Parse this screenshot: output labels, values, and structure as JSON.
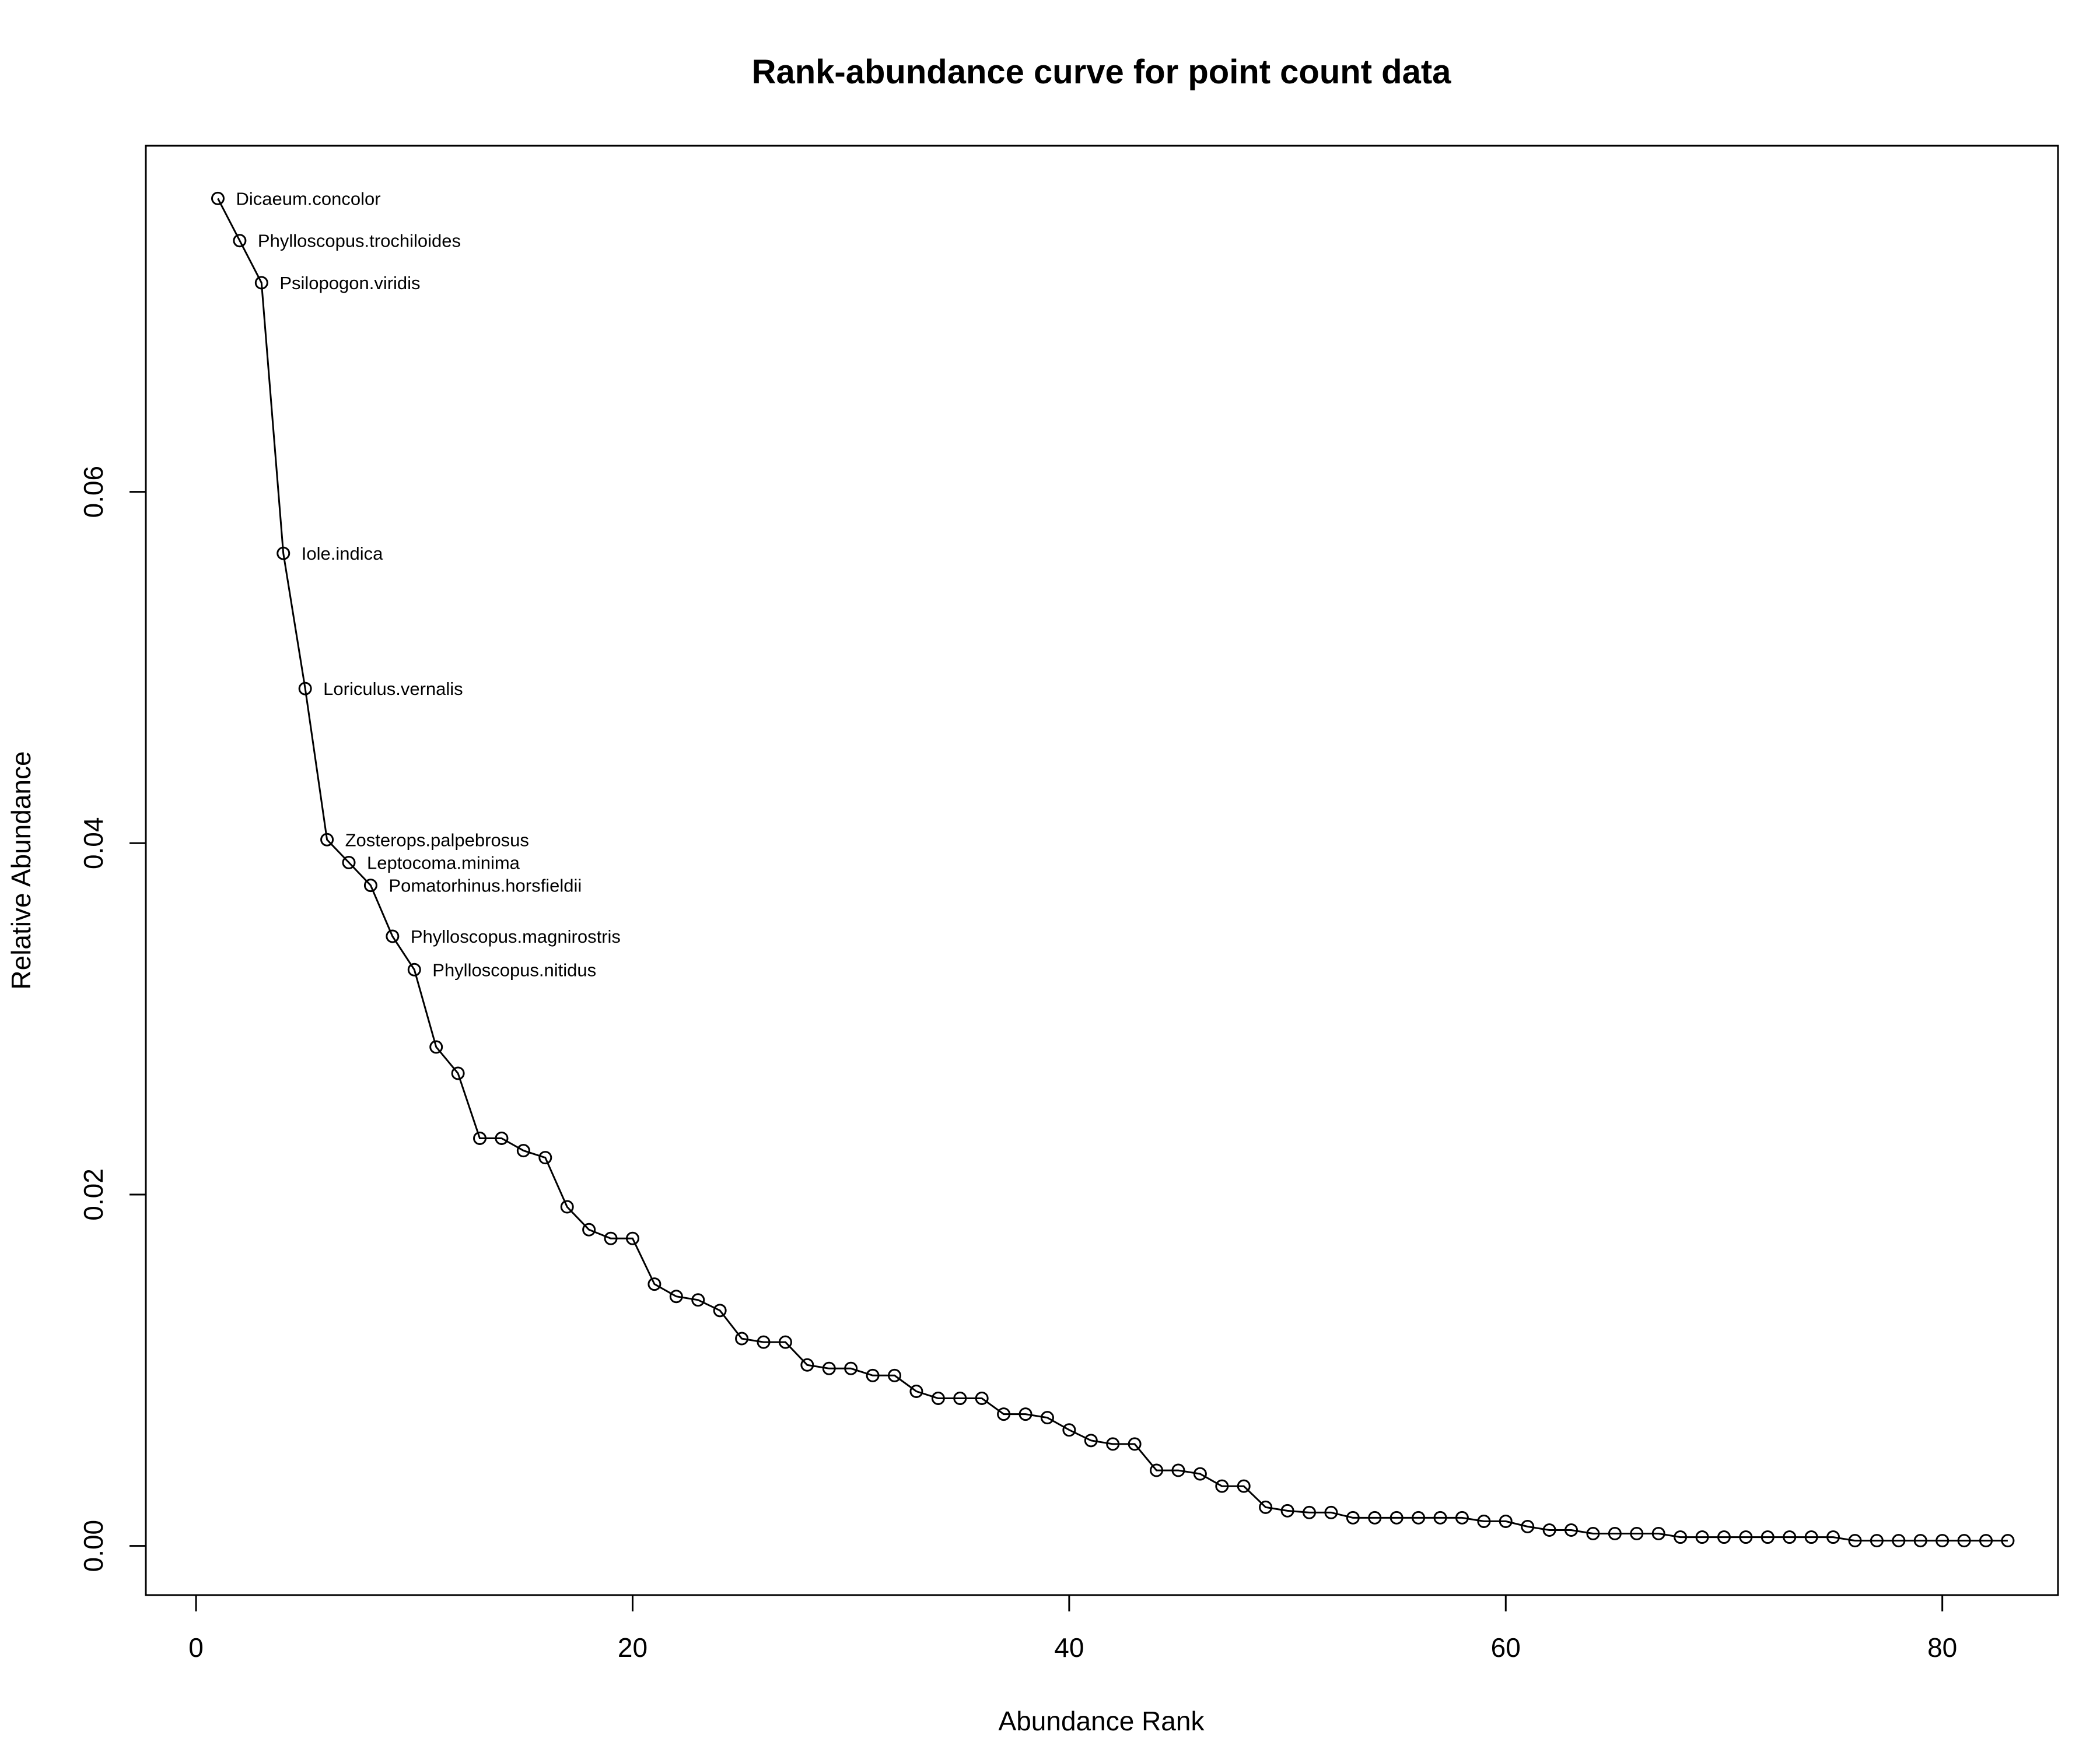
{
  "chart_data": {
    "type": "line",
    "title": "Rank-abundance curve for point count data",
    "xlabel": "Abundance Rank",
    "ylabel": "Relative Abundance",
    "xlim": [
      -2.3,
      85.3
    ],
    "ylim": [
      -0.0028,
      0.0797
    ],
    "xticks": [
      0,
      20,
      40,
      60,
      80
    ],
    "xtick_labels": [
      "0",
      "20",
      "40",
      "60",
      "80"
    ],
    "yticks": [
      0.0,
      0.02,
      0.04,
      0.06
    ],
    "ytick_labels": [
      "0.00",
      "0.02",
      "0.04",
      "0.06"
    ],
    "grid": false,
    "legend": "none",
    "marker": "open-circle",
    "line_color": "#000000",
    "series": [
      {
        "x": [
          1,
          2,
          3,
          4,
          5,
          6,
          7,
          8,
          9,
          10,
          11,
          12,
          13,
          14,
          15,
          16,
          17,
          18,
          19,
          20,
          21,
          22,
          23,
          24,
          25,
          26,
          27,
          28,
          29,
          30,
          31,
          32,
          33,
          34,
          35,
          36,
          37,
          38,
          39,
          40,
          41,
          42,
          43,
          44,
          45,
          46,
          47,
          48,
          49,
          50,
          51,
          52,
          53,
          54,
          55,
          56,
          57,
          58,
          59,
          60,
          61,
          62,
          63,
          64,
          65,
          66,
          67,
          68,
          69,
          70,
          71,
          72,
          73,
          74,
          75,
          76,
          77,
          78,
          79,
          80,
          81,
          82,
          83
        ],
        "values": [
          0.0767,
          0.0743,
          0.0719,
          0.0565,
          0.0488,
          0.0402,
          0.0389,
          0.0376,
          0.0347,
          0.0328,
          0.0284,
          0.0269,
          0.0232,
          0.0232,
          0.0225,
          0.0221,
          0.0193,
          0.018,
          0.0175,
          0.0175,
          0.0149,
          0.0142,
          0.014,
          0.0134,
          0.0118,
          0.0116,
          0.0116,
          0.0103,
          0.0101,
          0.0101,
          0.0097,
          0.0097,
          0.0088,
          0.0084,
          0.0084,
          0.0084,
          0.0075,
          0.0075,
          0.0073,
          0.0066,
          0.006,
          0.0058,
          0.0058,
          0.0043,
          0.0043,
          0.0041,
          0.0034,
          0.0034,
          0.0022,
          0.002,
          0.0019,
          0.0019,
          0.0016,
          0.0016,
          0.0016,
          0.0016,
          0.0016,
          0.0016,
          0.0014,
          0.0014,
          0.0011,
          0.0009,
          0.0009,
          0.0007,
          0.0007,
          0.0007,
          0.0007,
          0.0005,
          0.0005,
          0.0005,
          0.0005,
          0.0005,
          0.0005,
          0.0005,
          0.0005,
          0.0003,
          0.0003,
          0.0003,
          0.0003,
          0.0003,
          0.0003,
          0.0003,
          0.0003
        ]
      }
    ],
    "annotations": [
      {
        "rank": 1,
        "text": "Dicaeum.concolor"
      },
      {
        "rank": 2,
        "text": "Phylloscopus.trochiloides"
      },
      {
        "rank": 3,
        "text": "Psilopogon.viridis"
      },
      {
        "rank": 4,
        "text": "Iole.indica"
      },
      {
        "rank": 5,
        "text": "Loriculus.vernalis"
      },
      {
        "rank": 6,
        "text": "Zosterops.palpebrosus"
      },
      {
        "rank": 7,
        "text": "Leptocoma.minima"
      },
      {
        "rank": 8,
        "text": "Pomatorhinus.horsfieldii"
      },
      {
        "rank": 9,
        "text": "Phylloscopus.magnirostris"
      },
      {
        "rank": 10,
        "text": "Phylloscopus.nitidus"
      }
    ]
  }
}
